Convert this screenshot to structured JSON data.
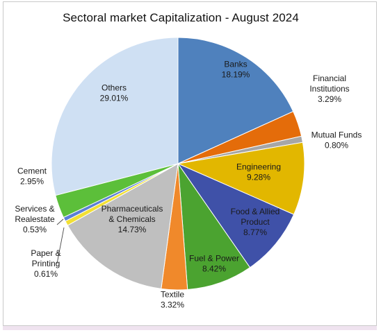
{
  "chart_data": {
    "type": "pie",
    "title": "Sectoral market Capitalization - August 2024",
    "start_angle_deg": 0,
    "direction": "clockwise",
    "slices": [
      {
        "name": "Banks",
        "value": 18.19,
        "label_lines": [
          "Banks",
          "18.19%"
        ],
        "color": "#4f81bd"
      },
      {
        "name": "Financial Institutions",
        "value": 3.29,
        "label_lines": [
          "Financial",
          "Institutions",
          "3.29%"
        ],
        "color": "#e46c0a"
      },
      {
        "name": "Mutual Funds",
        "value": 0.8,
        "label_lines": [
          "Mutual Funds",
          "0.80%"
        ],
        "color": "#a6a6a6"
      },
      {
        "name": "Engineering",
        "value": 9.28,
        "label_lines": [
          "Engineering",
          "9.28%"
        ],
        "color": "#e2b700"
      },
      {
        "name": "Food & Allied Product",
        "value": 8.77,
        "label_lines": [
          "Food & Allied",
          "Product",
          "8.77%"
        ],
        "color": "#3f51a8"
      },
      {
        "name": "Fuel & Power",
        "value": 8.42,
        "label_lines": [
          "Fuel & Power",
          "8.42%"
        ],
        "color": "#4ba330"
      },
      {
        "name": "Textile",
        "value": 3.32,
        "label_lines": [
          "Textile",
          "3.32%"
        ],
        "color": "#f0892b"
      },
      {
        "name": "Pharmaceuticals & Chemicals",
        "value": 14.73,
        "label_lines": [
          "Pharmaceuticals",
          "& Chemicals",
          "14.73%"
        ],
        "color": "#bfbfbf"
      },
      {
        "name": "Paper & Printing",
        "value": 0.61,
        "label_lines": [
          "Paper &",
          "Printing",
          "0.61%"
        ],
        "color": "#f2e035"
      },
      {
        "name": "Services & Realestate",
        "value": 0.53,
        "label_lines": [
          "Services &",
          "Realestate",
          "0.53%"
        ],
        "color": "#5b7fd6"
      },
      {
        "name": "Cement",
        "value": 2.95,
        "label_lines": [
          "Cement",
          "2.95%"
        ],
        "color": "#5cbf3a"
      },
      {
        "name": "Others",
        "value": 29.01,
        "label_lines": [
          "Others",
          "29.01%"
        ],
        "color": "#cfe0f3"
      }
    ]
  }
}
